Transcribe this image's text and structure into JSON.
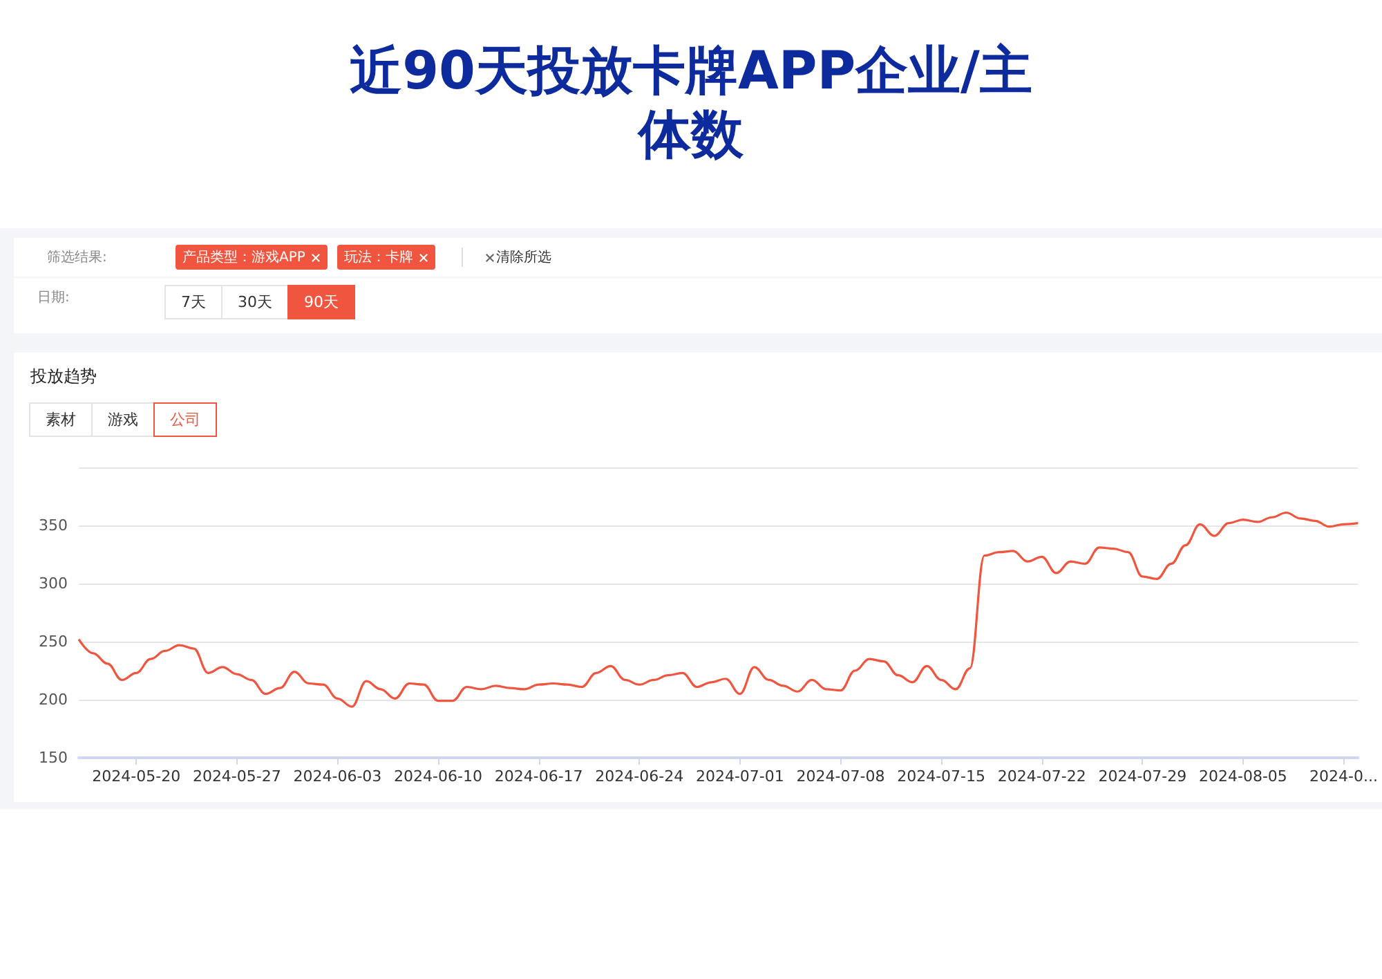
{
  "chart_data": {
    "type": "line",
    "title": "近90天投放卡牌APP企业/主体数",
    "annotations": [
      "筛选结果:",
      "产品类型：游戏APP",
      "玩法：卡牌",
      "清除所选",
      "日期:",
      "7天",
      "30天",
      "90天",
      "投放趋势",
      "素材",
      "游戏",
      "公司"
    ],
    "x": [
      "2024-05-16",
      "2024-05-17",
      "2024-05-18",
      "2024-05-19",
      "2024-05-20",
      "2024-05-21",
      "2024-05-22",
      "2024-05-23",
      "2024-05-24",
      "2024-05-25",
      "2024-05-26",
      "2024-05-27",
      "2024-05-28",
      "2024-05-29",
      "2024-05-30",
      "2024-05-31",
      "2024-06-01",
      "2024-06-02",
      "2024-06-03",
      "2024-06-04",
      "2024-06-05",
      "2024-06-06",
      "2024-06-07",
      "2024-06-08",
      "2024-06-09",
      "2024-06-10",
      "2024-06-11",
      "2024-06-12",
      "2024-06-13",
      "2024-06-14",
      "2024-06-15",
      "2024-06-16",
      "2024-06-17",
      "2024-06-18",
      "2024-06-19",
      "2024-06-20",
      "2024-06-21",
      "2024-06-22",
      "2024-06-23",
      "2024-06-24",
      "2024-06-25",
      "2024-06-26",
      "2024-06-27",
      "2024-06-28",
      "2024-06-29",
      "2024-06-30",
      "2024-07-01",
      "2024-07-02",
      "2024-07-03",
      "2024-07-04",
      "2024-07-05",
      "2024-07-06",
      "2024-07-07",
      "2024-07-08",
      "2024-07-09",
      "2024-07-10",
      "2024-07-11",
      "2024-07-12",
      "2024-07-13",
      "2024-07-14",
      "2024-07-15",
      "2024-07-16",
      "2024-07-17",
      "2024-07-18",
      "2024-07-19",
      "2024-07-20",
      "2024-07-21",
      "2024-07-22",
      "2024-07-23",
      "2024-07-24",
      "2024-07-25",
      "2024-07-26",
      "2024-07-27",
      "2024-07-28",
      "2024-07-29",
      "2024-07-30",
      "2024-07-31",
      "2024-08-01",
      "2024-08-02",
      "2024-08-03",
      "2024-08-04",
      "2024-08-05",
      "2024-08-06",
      "2024-08-07",
      "2024-08-08",
      "2024-08-09",
      "2024-08-10",
      "2024-08-11",
      "2024-08-12",
      "2024-08-13"
    ],
    "series": [
      {
        "color": "#f0553f",
        "values": [
          252,
          240,
          231,
          217,
          223,
          235,
          242,
          247,
          244,
          223,
          228,
          222,
          217,
          205,
          210,
          224,
          214,
          213,
          201,
          194,
          216,
          209,
          201,
          214,
          213,
          199,
          199,
          211,
          209,
          212,
          210,
          209,
          213,
          214,
          213,
          211,
          223,
          229,
          217,
          213,
          217,
          221,
          223,
          211,
          215,
          218,
          205,
          228,
          217,
          212,
          207,
          217,
          209,
          208,
          225,
          235,
          233,
          221,
          215,
          229,
          217,
          209,
          227,
          324,
          327,
          328,
          319,
          323,
          309,
          319,
          317,
          331,
          330,
          327,
          306,
          304,
          317,
          333,
          351,
          341,
          352,
          355,
          353,
          357,
          361,
          356,
          354,
          349,
          351,
          352
        ]
      }
    ],
    "xlim": [
      "2024-05-16",
      "2024-08-13"
    ],
    "xticks": [
      {
        "value": "2024-05-20",
        "label": "2024-05-20"
      },
      {
        "value": "2024-05-27",
        "label": "2024-05-27"
      },
      {
        "value": "2024-06-03",
        "label": "2024-06-03"
      },
      {
        "value": "2024-06-10",
        "label": "2024-06-10"
      },
      {
        "value": "2024-06-17",
        "label": "2024-06-17"
      },
      {
        "value": "2024-06-24",
        "label": "2024-06-24"
      },
      {
        "value": "2024-07-01",
        "label": "2024-07-01"
      },
      {
        "value": "2024-07-08",
        "label": "2024-07-08"
      },
      {
        "value": "2024-07-15",
        "label": "2024-07-15"
      },
      {
        "value": "2024-07-22",
        "label": "2024-07-22"
      },
      {
        "value": "2024-07-29",
        "label": "2024-07-29"
      },
      {
        "value": "2024-08-05",
        "label": "2024-08-05"
      },
      {
        "value": "2024-08-12",
        "label": "2024-0..."
      }
    ],
    "ylim": [
      150,
      400
    ],
    "yticks": [
      150,
      200,
      250,
      300,
      350,
      {
        "value": 400,
        "label": null
      }
    ],
    "grid": "y",
    "marker": "none",
    "line_style": "solid"
  }
}
